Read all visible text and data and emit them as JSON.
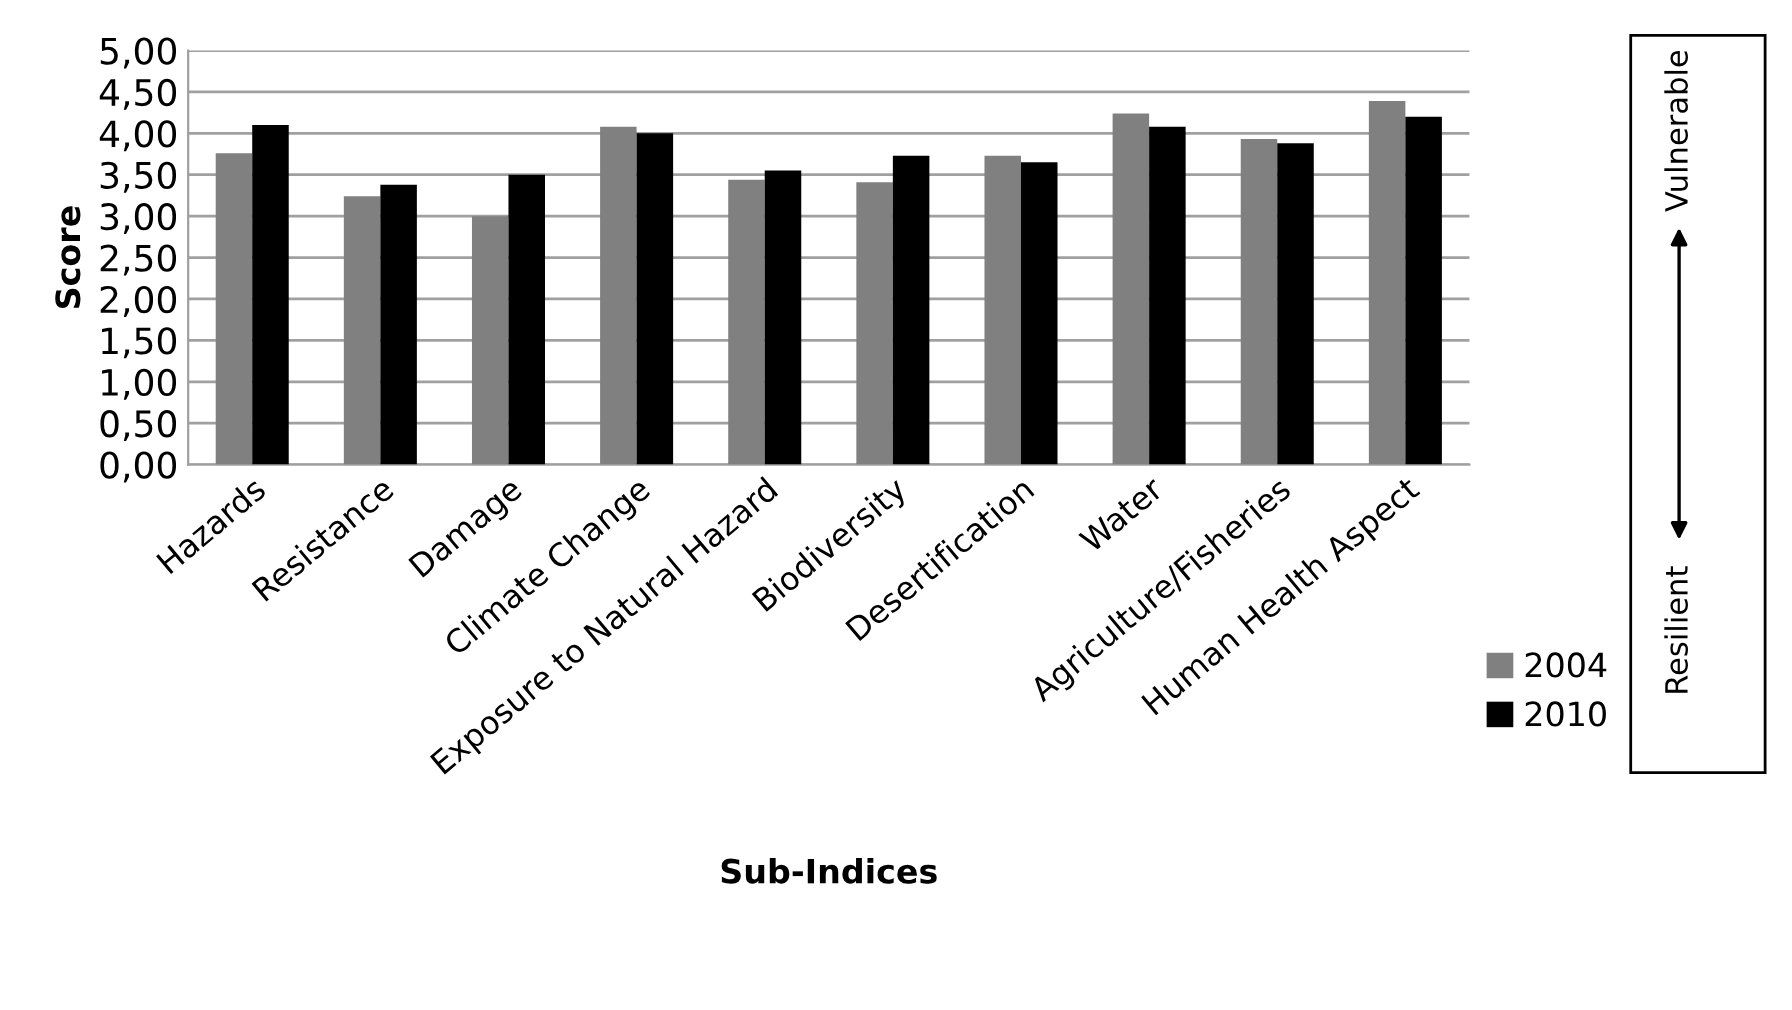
{
  "chart_data": {
    "type": "bar",
    "xlabel": "Sub-Indices",
    "ylabel": "Score",
    "categories": [
      "Hazards",
      "Resistance",
      "Damage",
      "Climate Change",
      "Exposure to Natural Hazard",
      "Biodiversity",
      "Desertification",
      "Water",
      "Agriculture/Fisheries",
      "Human Health Aspect"
    ],
    "series": [
      {
        "name": "2004",
        "color": "#808080",
        "values": [
          3.76,
          3.24,
          3.0,
          4.08,
          3.44,
          3.41,
          3.73,
          4.24,
          3.93,
          4.39
        ]
      },
      {
        "name": "2010",
        "color": "#000000",
        "values": [
          4.1,
          3.38,
          3.5,
          4.0,
          3.55,
          3.73,
          3.65,
          4.08,
          3.88,
          4.2
        ]
      }
    ],
    "ylim": [
      0,
      5
    ],
    "yticks": [
      {
        "value": 0,
        "label": "0,00"
      },
      {
        "value": 0.5,
        "label": "0,50"
      },
      {
        "value": 1,
        "label": "1,00"
      },
      {
        "value": 1.5,
        "label": "1,50"
      },
      {
        "value": 2,
        "label": "2,00"
      },
      {
        "value": 2.5,
        "label": "2,50"
      },
      {
        "value": 3,
        "label": "3,00"
      },
      {
        "value": 3.5,
        "label": "3,50"
      },
      {
        "value": 4,
        "label": "4,00"
      },
      {
        "value": 4.5,
        "label": "4,50"
      },
      {
        "value": 5,
        "label": "5,00"
      }
    ],
    "grid": "y",
    "legend": "right",
    "annotations": [
      "Resilient",
      "Vulnerable"
    ]
  }
}
